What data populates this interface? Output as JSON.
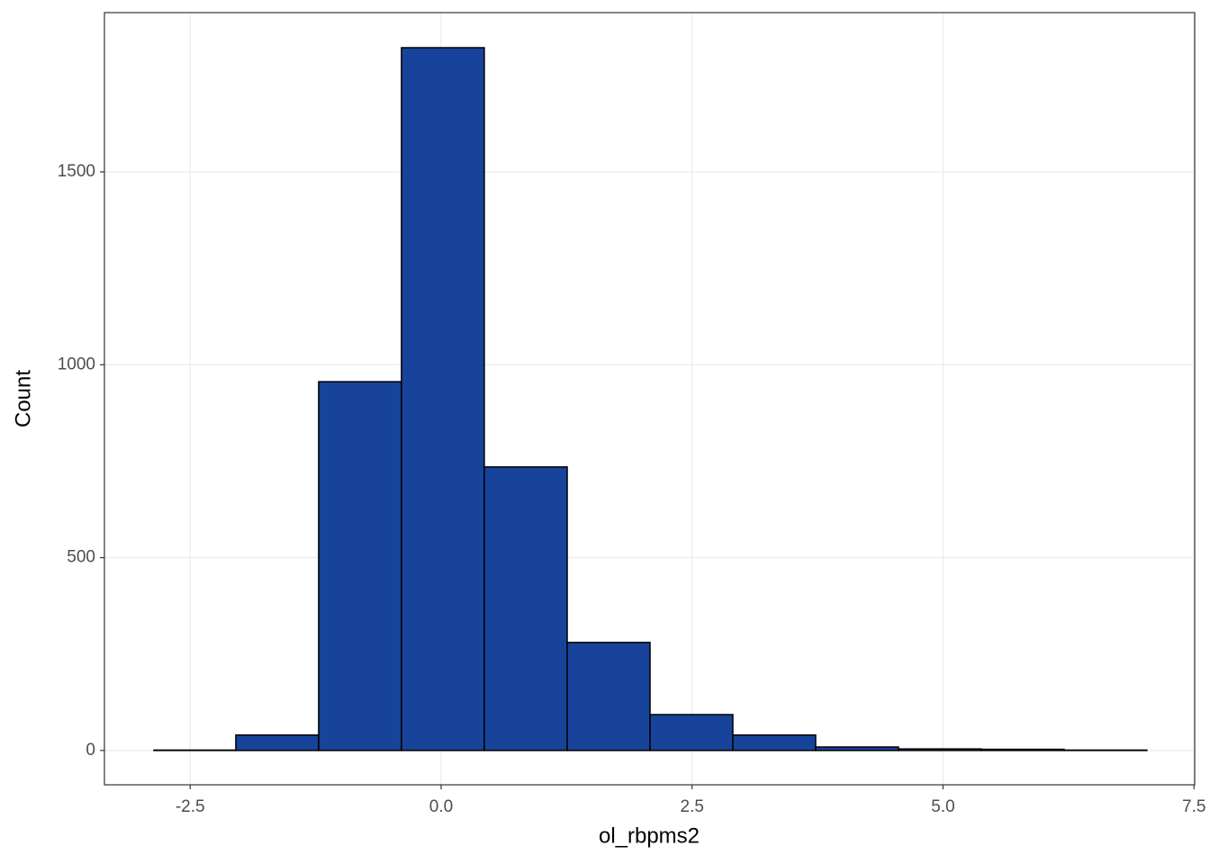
{
  "chart_data": {
    "type": "histogram",
    "x_label": "ol_rbpms2",
    "y_label": "Count",
    "bins": [
      -2.861,
      -2.045,
      -1.22,
      -0.395,
      0.43,
      1.256,
      2.081,
      2.906,
      3.731,
      4.556,
      5.381,
      6.206,
      7.031
    ],
    "counts": [
      1,
      40,
      956,
      1822,
      735,
      280,
      93,
      40,
      9,
      4,
      3,
      1
    ],
    "color": "#17449a",
    "edge_color": "#000000",
    "xlim": [
      -3.354,
      7.507
    ],
    "ylim": [
      -89,
      1913
    ],
    "xticks": [
      {
        "value": -2.5,
        "label": "-2.5"
      },
      {
        "value": 0,
        "label": "0.0"
      },
      2.5,
      {
        "value": 5,
        "label": "5.0"
      },
      7.5
    ],
    "yticks": [
      0,
      500,
      1000,
      1500
    ],
    "grid": true
  }
}
